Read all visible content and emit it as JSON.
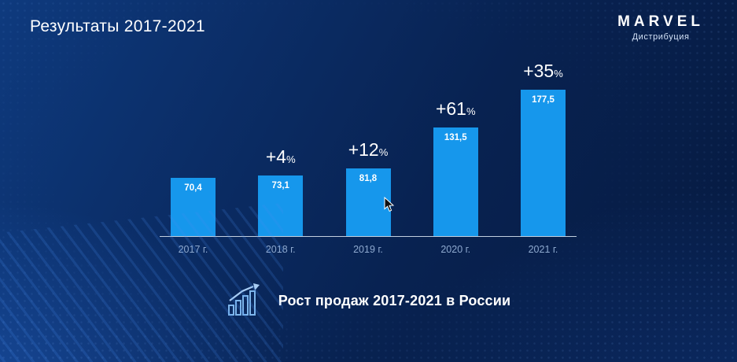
{
  "slide": {
    "title": "Результаты 2017-2021",
    "logo": {
      "brand": "MARVEL",
      "subtitle": "Дистрибуция"
    },
    "caption": "Рост продаж 2017-2021 в России"
  },
  "chart_data": {
    "type": "bar",
    "title": "Результаты 2017-2021",
    "categories": [
      "2017 г.",
      "2018 г.",
      "2019 г.",
      "2020 г.",
      "2021 г."
    ],
    "values": [
      70.4,
      73.1,
      81.8,
      131.5,
      177.5
    ],
    "value_labels": [
      "70,4",
      "73,1",
      "81,8",
      "131,5",
      "177,5"
    ],
    "growth_labels": [
      "",
      "+4",
      "+12",
      "+61",
      "+35"
    ],
    "percent_suffix": "%",
    "xlabel": "",
    "ylabel": "",
    "ylim": [
      0,
      190
    ],
    "grid": false,
    "legend": false,
    "bar_color": "#1697EC",
    "background_color": "#0A2B63",
    "axis_line_color": "#C2CFDF",
    "tick_label_color": "#8EA9CF"
  }
}
